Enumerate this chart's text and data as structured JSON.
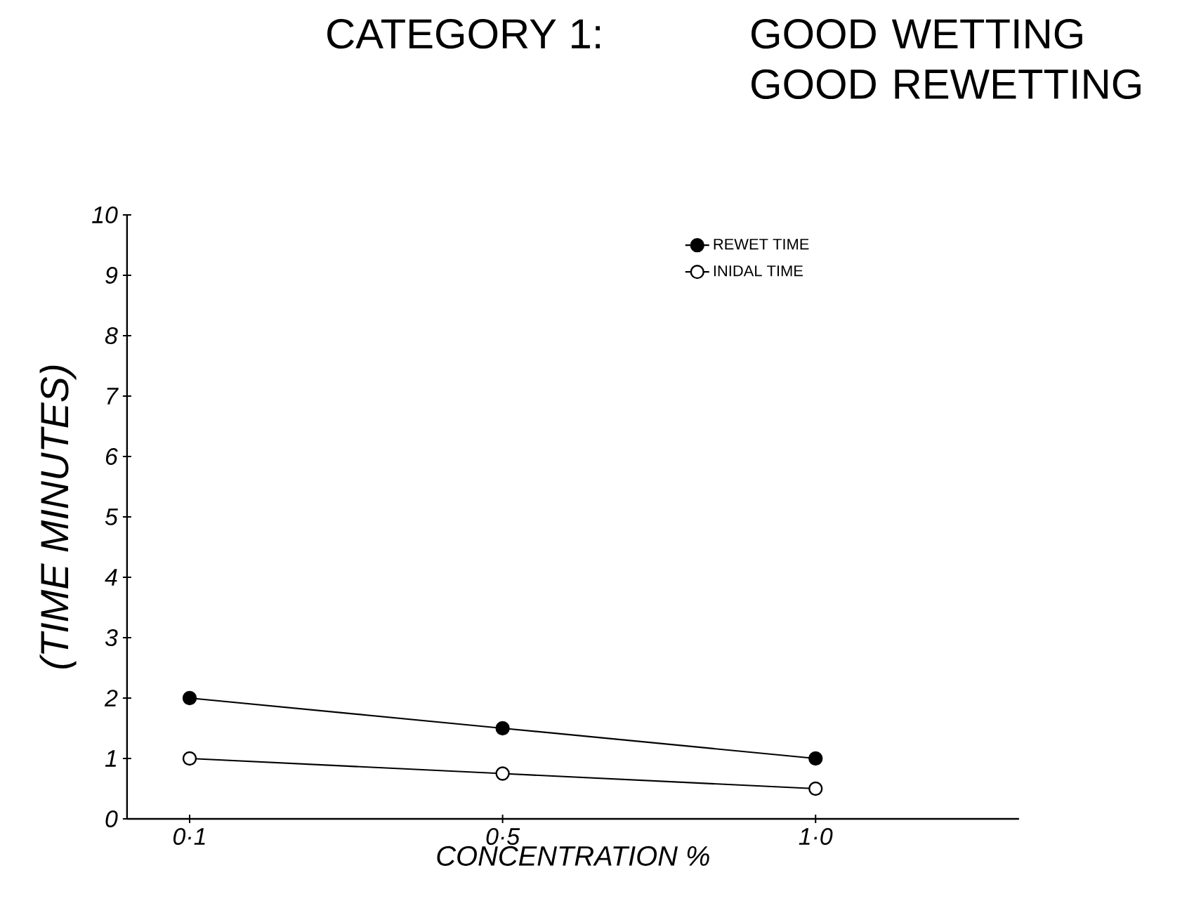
{
  "chart_data": {
    "type": "line",
    "title": "CATEGORY 1:",
    "subtitle": "GOOD WETTING GOOD REWETTING",
    "xlabel": "CONCENTRATION %",
    "ylabel": "(TIME MINUTES)",
    "categories": [
      "0·1",
      "0·5",
      "1·0"
    ],
    "series": [
      {
        "name": "REWET TIME",
        "color": "#000000",
        "values": [
          2,
          1.5,
          1
        ]
      },
      {
        "name": "INIDAL TIME",
        "color": "#000000",
        "values": [
          1,
          0.75,
          0.5
        ]
      }
    ],
    "ylim": [
      0,
      10
    ],
    "yticks": [
      0,
      1,
      2,
      3,
      4,
      5,
      6,
      7,
      8,
      9,
      10
    ],
    "grid": false,
    "legend": "top right",
    "marker": "circle",
    "line_style": "solid"
  }
}
